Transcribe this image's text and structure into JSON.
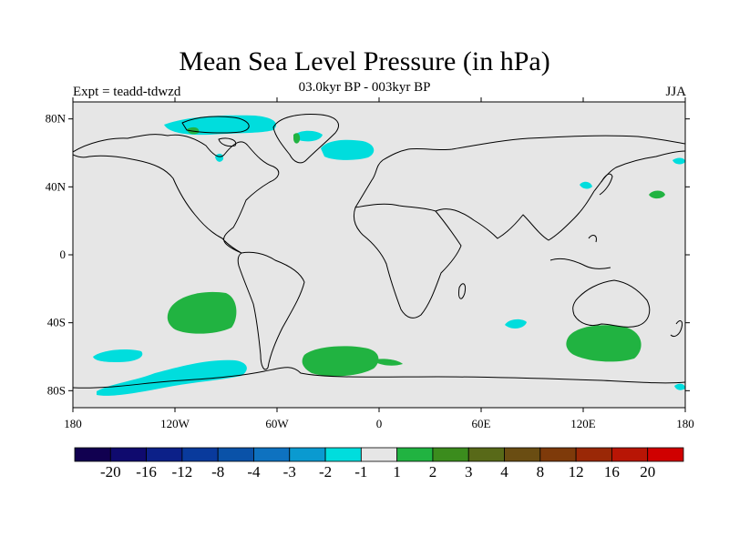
{
  "header": {
    "title": "Mean Sea Level Pressure (in hPa)",
    "subtitle": "03.0kyr BP - 003kyr BP",
    "left_label": "Expt = teadd-tdwzd",
    "right_label": "JJA"
  },
  "map": {
    "lon_range": [
      -180,
      180
    ],
    "lat_range": [
      -90,
      90
    ],
    "lat_ticks": [
      {
        "value": 80,
        "label": "80N"
      },
      {
        "value": 40,
        "label": "40N"
      },
      {
        "value": 0,
        "label": "0"
      },
      {
        "value": -40,
        "label": "40S"
      },
      {
        "value": -80,
        "label": "80S"
      }
    ],
    "lon_ticks": [
      {
        "value": -180,
        "label": "180"
      },
      {
        "value": -120,
        "label": "120W"
      },
      {
        "value": -60,
        "label": "60W"
      },
      {
        "value": 0,
        "label": "0"
      },
      {
        "value": 60,
        "label": "60E"
      },
      {
        "value": 120,
        "label": "120E"
      },
      {
        "value": 180,
        "label": "180"
      }
    ],
    "ocean_color": "#e6e6e6",
    "coast_color": "#000000"
  },
  "colorbar": {
    "colors": [
      "#110050",
      "#0f0a6e",
      "#0c2088",
      "#093a9c",
      "#0a52a8",
      "#0e72c0",
      "#0a9ad0",
      "#00dddd",
      "#e6e6e6",
      "#21b341",
      "#3b8c1d",
      "#586918",
      "#6a4d12",
      "#7e3a0a",
      "#9a2806",
      "#b81505",
      "#d00000"
    ],
    "labels": [
      "-20",
      "-16",
      "-12",
      "-8",
      "-4",
      "-3",
      "-2",
      "-1",
      "1",
      "2",
      "3",
      "4",
      "8",
      "12",
      "16",
      "20"
    ]
  }
}
